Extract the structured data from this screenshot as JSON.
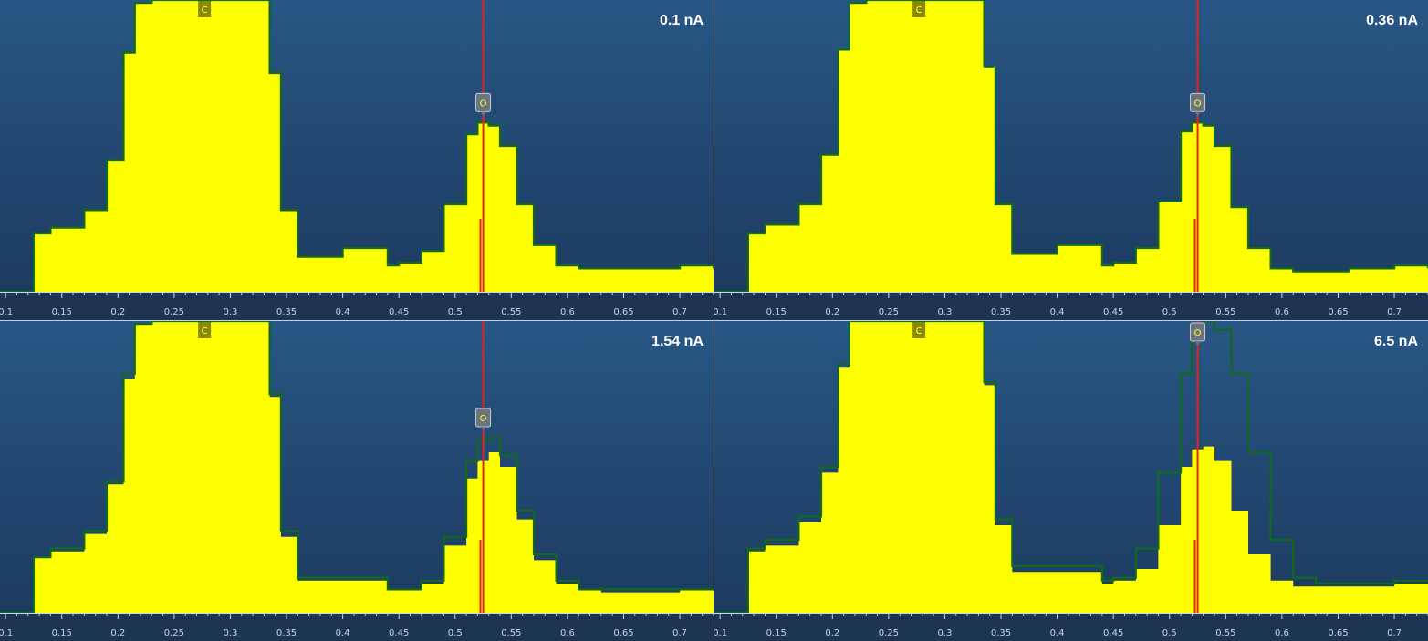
{
  "colors": {
    "background_top": "#285684",
    "background_bottom": "#1d3b60",
    "spectrum_fill": "#ffff00",
    "reference_outline": "#0f6a1c",
    "line_marker": "#e8221e",
    "axis_strip": "#1b3552",
    "tick": "#c9d6e6",
    "marker_box": "#6b7580",
    "c_tag_bg": "#8a8a00"
  },
  "icons": {
    "element_marker": "label-tag-icon"
  },
  "chart_data": [
    {
      "type": "area",
      "label": "0.1 nA",
      "xlim": [
        0.095,
        0.73
      ],
      "ylim": [
        0,
        100
      ],
      "xticks": [
        0.1,
        0.15,
        0.2,
        0.25,
        0.3,
        0.35,
        0.4,
        0.45,
        0.5,
        0.55,
        0.6,
        0.65,
        0.7
      ],
      "element_labels": [
        {
          "text": "C",
          "x": 0.277
        },
        {
          "text": "O",
          "x": 0.525
        }
      ],
      "line_marker_x": 0.525,
      "reference": {
        "x": [
          0.095,
          0.12,
          0.125,
          0.14,
          0.17,
          0.19,
          0.205,
          0.215,
          0.23,
          0.28,
          0.33,
          0.335,
          0.345,
          0.36,
          0.4,
          0.44,
          0.45,
          0.47,
          0.49,
          0.51,
          0.52,
          0.53,
          0.54,
          0.555,
          0.57,
          0.59,
          0.61,
          0.63,
          0.66,
          0.7,
          0.73
        ],
        "y": [
          0,
          0,
          20,
          22,
          28,
          45,
          82,
          99,
          100,
          100,
          100,
          75,
          28,
          12,
          15,
          9,
          10,
          14,
          30,
          54,
          58,
          57,
          50,
          30,
          16,
          9,
          8,
          8,
          8,
          9,
          8
        ]
      },
      "measured": {
        "x": [
          0.095,
          0.12,
          0.125,
          0.14,
          0.17,
          0.19,
          0.205,
          0.215,
          0.23,
          0.28,
          0.33,
          0.335,
          0.345,
          0.36,
          0.4,
          0.44,
          0.45,
          0.47,
          0.49,
          0.51,
          0.52,
          0.53,
          0.54,
          0.555,
          0.57,
          0.59,
          0.61,
          0.63,
          0.66,
          0.7,
          0.73
        ],
        "y": [
          0,
          0,
          20,
          22,
          28,
          45,
          82,
          99,
          100,
          100,
          100,
          75,
          28,
          12,
          15,
          9,
          10,
          14,
          30,
          54,
          58,
          57,
          50,
          30,
          16,
          9,
          8,
          8,
          8,
          9,
          8
        ]
      }
    },
    {
      "type": "area",
      "label": "0.36 nA",
      "xlim": [
        0.095,
        0.73
      ],
      "ylim": [
        0,
        100
      ],
      "xticks": [
        0.1,
        0.15,
        0.2,
        0.25,
        0.3,
        0.35,
        0.4,
        0.45,
        0.5,
        0.55,
        0.6,
        0.65,
        0.7
      ],
      "element_labels": [
        {
          "text": "C",
          "x": 0.277
        },
        {
          "text": "O",
          "x": 0.525
        }
      ],
      "line_marker_x": 0.525,
      "reference": {
        "x": [
          0.095,
          0.12,
          0.125,
          0.14,
          0.17,
          0.19,
          0.205,
          0.215,
          0.23,
          0.28,
          0.33,
          0.335,
          0.345,
          0.36,
          0.4,
          0.44,
          0.45,
          0.47,
          0.49,
          0.51,
          0.52,
          0.53,
          0.54,
          0.555,
          0.57,
          0.59,
          0.61,
          0.63,
          0.66,
          0.7,
          0.73
        ],
        "y": [
          0,
          0,
          20,
          23,
          30,
          47,
          83,
          99,
          100,
          100,
          100,
          77,
          30,
          13,
          16,
          9,
          10,
          15,
          31,
          55,
          58,
          57,
          50,
          29,
          15,
          8,
          7,
          7,
          8,
          9,
          8
        ]
      },
      "measured": {
        "x": [
          0.095,
          0.12,
          0.125,
          0.14,
          0.17,
          0.19,
          0.205,
          0.215,
          0.23,
          0.28,
          0.33,
          0.335,
          0.345,
          0.36,
          0.4,
          0.44,
          0.45,
          0.47,
          0.49,
          0.51,
          0.52,
          0.53,
          0.54,
          0.555,
          0.57,
          0.59,
          0.61,
          0.63,
          0.66,
          0.7,
          0.73
        ],
        "y": [
          0,
          0,
          20,
          23,
          30,
          47,
          83,
          99,
          100,
          100,
          100,
          77,
          30,
          13,
          16,
          9,
          10,
          15,
          31,
          55,
          58,
          57,
          50,
          29,
          15,
          8,
          7,
          7,
          8,
          9,
          8
        ]
      }
    },
    {
      "type": "area",
      "label": "1.54 nA",
      "xlim": [
        0.095,
        0.73
      ],
      "ylim": [
        0,
        100
      ],
      "xticks": [
        0.1,
        0.15,
        0.2,
        0.25,
        0.3,
        0.35,
        0.4,
        0.45,
        0.5,
        0.55,
        0.6,
        0.65,
        0.7
      ],
      "element_labels": [
        {
          "text": "C",
          "x": 0.277
        },
        {
          "text": "O",
          "x": 0.525
        }
      ],
      "line_marker_x": 0.525,
      "reference": {
        "x": [
          0.095,
          0.12,
          0.125,
          0.14,
          0.17,
          0.19,
          0.205,
          0.215,
          0.23,
          0.28,
          0.33,
          0.335,
          0.345,
          0.36,
          0.4,
          0.44,
          0.45,
          0.47,
          0.49,
          0.51,
          0.52,
          0.53,
          0.54,
          0.555,
          0.57,
          0.59,
          0.61,
          0.63,
          0.66,
          0.7,
          0.73
        ],
        "y": [
          0,
          0,
          19,
          22,
          28,
          45,
          82,
          99,
          100,
          100,
          100,
          75,
          28,
          12,
          12,
          8,
          8,
          11,
          26,
          52,
          59,
          60,
          54,
          35,
          20,
          11,
          8,
          8,
          8,
          8,
          8
        ]
      },
      "measured": {
        "x": [
          0.095,
          0.12,
          0.125,
          0.14,
          0.17,
          0.19,
          0.205,
          0.215,
          0.23,
          0.28,
          0.33,
          0.335,
          0.345,
          0.36,
          0.4,
          0.44,
          0.45,
          0.47,
          0.49,
          0.51,
          0.52,
          0.53,
          0.54,
          0.555,
          0.57,
          0.59,
          0.61,
          0.63,
          0.66,
          0.7,
          0.73
        ],
        "y": [
          0,
          0,
          19,
          21,
          27,
          44,
          80,
          99,
          100,
          100,
          100,
          74,
          26,
          11,
          11,
          8,
          8,
          10,
          23,
          46,
          52,
          55,
          50,
          32,
          18,
          10,
          8,
          7,
          7,
          8,
          7
        ]
      }
    },
    {
      "type": "area",
      "label": "6.5 nA",
      "xlim": [
        0.095,
        0.73
      ],
      "ylim": [
        0,
        100
      ],
      "xticks": [
        0.1,
        0.15,
        0.2,
        0.25,
        0.3,
        0.35,
        0.4,
        0.45,
        0.5,
        0.55,
        0.6,
        0.65,
        0.7
      ],
      "element_labels": [
        {
          "text": "C",
          "x": 0.277
        },
        {
          "text": "O",
          "x": 0.525
        }
      ],
      "line_marker_x": 0.525,
      "reference": {
        "x": [
          0.095,
          0.12,
          0.125,
          0.14,
          0.17,
          0.19,
          0.205,
          0.215,
          0.23,
          0.28,
          0.33,
          0.335,
          0.345,
          0.36,
          0.4,
          0.44,
          0.45,
          0.47,
          0.49,
          0.51,
          0.52,
          0.53,
          0.54,
          0.555,
          0.57,
          0.59,
          0.61,
          0.63,
          0.66,
          0.7,
          0.73
        ],
        "y": [
          0,
          0,
          22,
          25,
          33,
          50,
          85,
          100,
          100,
          100,
          100,
          79,
          32,
          16,
          16,
          11,
          12,
          22,
          48,
          82,
          95,
          100,
          97,
          82,
          55,
          25,
          12,
          10,
          10,
          11,
          11
        ]
      },
      "measured": {
        "x": [
          0.095,
          0.12,
          0.125,
          0.14,
          0.17,
          0.19,
          0.205,
          0.215,
          0.23,
          0.28,
          0.33,
          0.335,
          0.345,
          0.36,
          0.4,
          0.44,
          0.45,
          0.47,
          0.49,
          0.51,
          0.52,
          0.53,
          0.54,
          0.555,
          0.57,
          0.59,
          0.61,
          0.63,
          0.66,
          0.7,
          0.73
        ],
        "y": [
          0,
          0,
          21,
          23,
          31,
          48,
          84,
          100,
          100,
          100,
          100,
          78,
          30,
          14,
          14,
          10,
          11,
          15,
          30,
          50,
          56,
          57,
          52,
          35,
          20,
          11,
          9,
          9,
          9,
          10,
          9
        ]
      }
    }
  ]
}
